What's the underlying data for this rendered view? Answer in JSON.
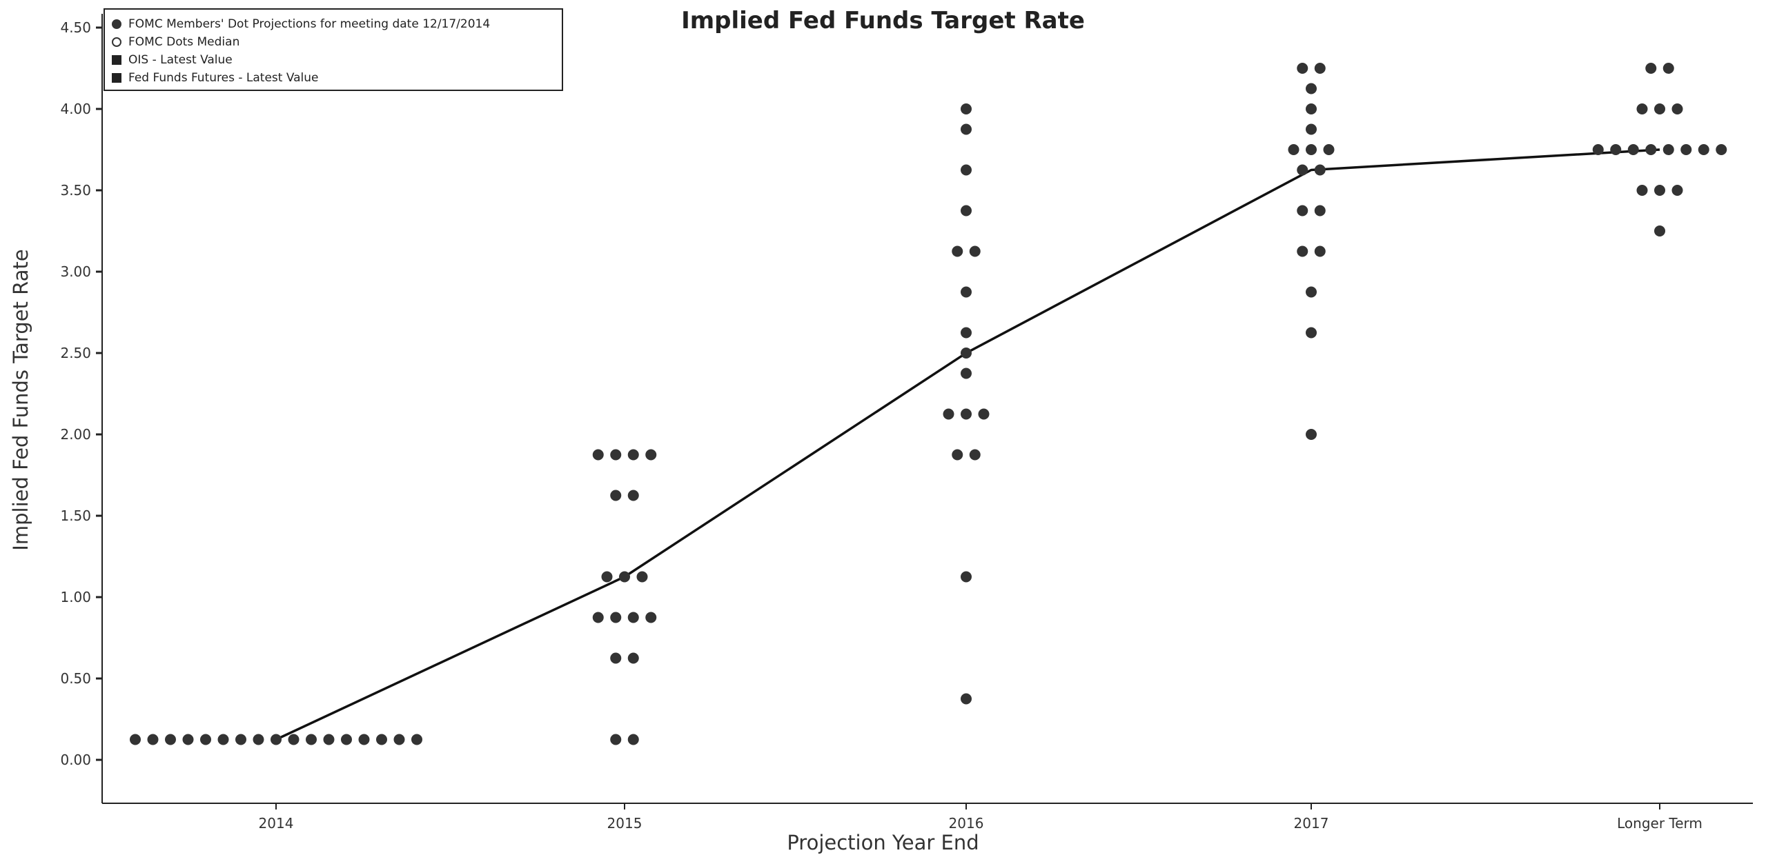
{
  "chart_data": {
    "type": "scatter",
    "title": "Implied Fed Funds Target Rate",
    "xlabel": "Projection Year End",
    "ylabel": "Implied Fed Funds Target Rate",
    "categories": [
      "2014",
      "2015",
      "2016",
      "2017",
      "Longer Term"
    ],
    "ylim": [
      -0.25,
      4.6
    ],
    "yticks": [
      "0.00",
      "0.50",
      "1.00",
      "1.50",
      "2.00",
      "2.50",
      "3.00",
      "3.50",
      "4.00",
      "4.50"
    ],
    "grid": false,
    "legend": "top-left",
    "legend_entries": [
      {
        "label": "FOMC Members' Dot Projections for meeting date 12/17/2014",
        "marker": "filled-circle"
      },
      {
        "label": "FOMC Dots Median",
        "marker": "open-circle"
      },
      {
        "label": "OIS - Latest Value",
        "marker": "square"
      },
      {
        "label": "Fed Funds Futures - Latest Value",
        "marker": "square"
      }
    ],
    "series": [
      {
        "name": "FOMC Members' Dot Projections for meeting date 12/17/2014",
        "points": [
          {
            "x": "2014",
            "y": 0.125,
            "count": 17
          },
          {
            "x": "2015",
            "y": 1.875,
            "count": 4
          },
          {
            "x": "2015",
            "y": 1.625,
            "count": 2
          },
          {
            "x": "2015",
            "y": 1.125,
            "count": 3
          },
          {
            "x": "2015",
            "y": 0.875,
            "count": 4
          },
          {
            "x": "2015",
            "y": 0.625,
            "count": 2
          },
          {
            "x": "2015",
            "y": 0.125,
            "count": 2
          },
          {
            "x": "2016",
            "y": 4.0,
            "count": 1
          },
          {
            "x": "2016",
            "y": 3.875,
            "count": 1
          },
          {
            "x": "2016",
            "y": 3.625,
            "count": 1
          },
          {
            "x": "2016",
            "y": 3.375,
            "count": 1
          },
          {
            "x": "2016",
            "y": 3.125,
            "count": 2
          },
          {
            "x": "2016",
            "y": 2.875,
            "count": 1
          },
          {
            "x": "2016",
            "y": 2.625,
            "count": 1
          },
          {
            "x": "2016",
            "y": 2.5,
            "count": 1
          },
          {
            "x": "2016",
            "y": 2.375,
            "count": 1
          },
          {
            "x": "2016",
            "y": 2.125,
            "count": 3
          },
          {
            "x": "2016",
            "y": 1.875,
            "count": 2
          },
          {
            "x": "2016",
            "y": 1.125,
            "count": 1
          },
          {
            "x": "2016",
            "y": 0.375,
            "count": 1
          },
          {
            "x": "2017",
            "y": 4.25,
            "count": 2
          },
          {
            "x": "2017",
            "y": 4.125,
            "count": 1
          },
          {
            "x": "2017",
            "y": 4.0,
            "count": 1
          },
          {
            "x": "2017",
            "y": 3.875,
            "count": 1
          },
          {
            "x": "2017",
            "y": 3.75,
            "count": 3
          },
          {
            "x": "2017",
            "y": 3.625,
            "count": 2
          },
          {
            "x": "2017",
            "y": 3.375,
            "count": 2
          },
          {
            "x": "2017",
            "y": 3.125,
            "count": 2
          },
          {
            "x": "2017",
            "y": 2.875,
            "count": 1
          },
          {
            "x": "2017",
            "y": 2.625,
            "count": 1
          },
          {
            "x": "2017",
            "y": 2.0,
            "count": 1
          },
          {
            "x": "Longer Term",
            "y": 4.25,
            "count": 2
          },
          {
            "x": "Longer Term",
            "y": 4.0,
            "count": 3
          },
          {
            "x": "Longer Term",
            "y": 3.75,
            "count": 8
          },
          {
            "x": "Longer Term",
            "y": 3.5,
            "count": 3
          },
          {
            "x": "Longer Term",
            "y": 3.25,
            "count": 1
          }
        ]
      },
      {
        "name": "FOMC Dots Median",
        "type": "line",
        "values": [
          0.125,
          1.125,
          2.5,
          3.625,
          3.75
        ]
      }
    ]
  },
  "colors": {
    "dots": "#333333",
    "line": "#111111",
    "axis": "#222222",
    "text": "#333333"
  }
}
